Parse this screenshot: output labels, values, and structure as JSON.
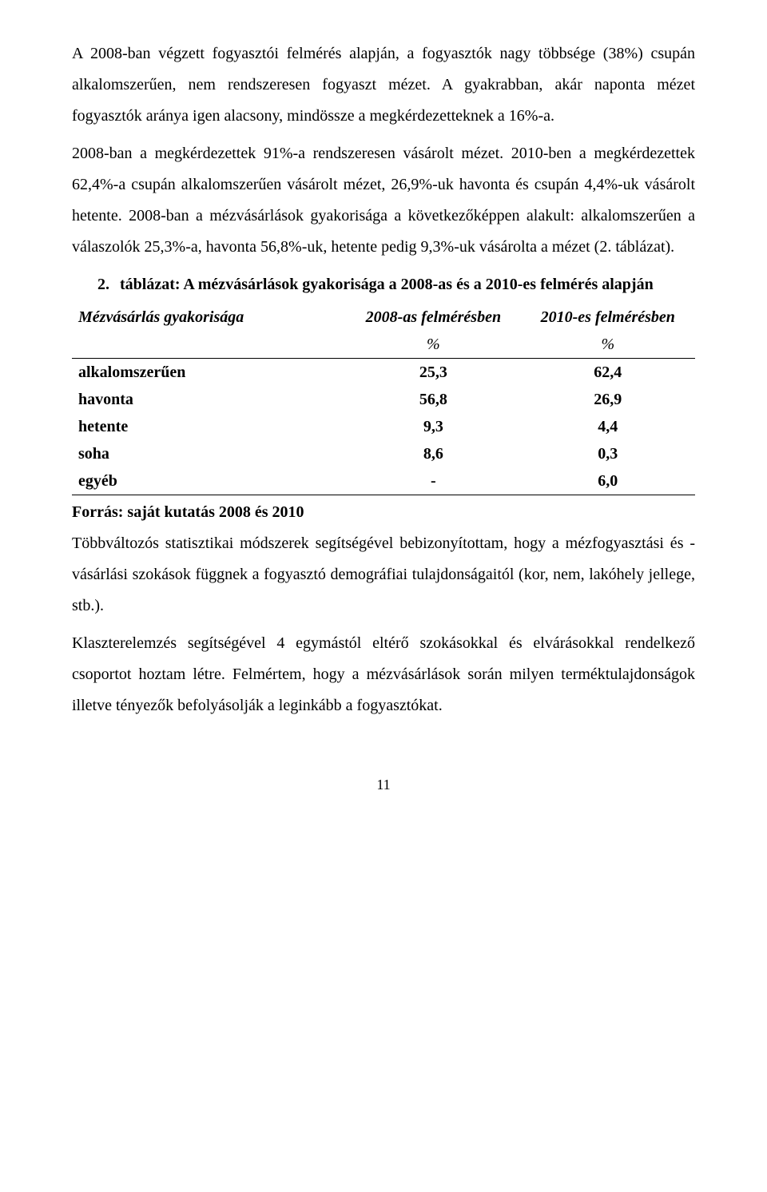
{
  "paragraphs": {
    "p1": "A 2008-ban végzett fogyasztói felmérés alapján, a fogyasztók nagy többsége (38%) csupán alkalomszerűen, nem rendszeresen fogyaszt mézet. A gyakrabban, akár naponta mézet fogyasztók aránya igen alacsony, mindössze a megkérdezetteknek a 16%-a.",
    "p2": "2008-ban a megkérdezettek 91%-a rendszeresen vásárolt mézet. 2010-ben a megkérdezettek 62,4%-a csupán alkalomszerűen vásárolt mézet, 26,9%-uk havonta és csupán 4,4%-uk vásárolt hetente. 2008-ban a mézvásárlások gyakorisága a következőképpen alakult: alkalomszerűen a válaszolók 25,3%-a, havonta 56,8%-uk, hetente pedig 9,3%-uk vásárolta a mézet (2. táblázat).",
    "p3": "Többváltozós statisztikai módszerek segítségével bebizonyítottam, hogy a mézfogyasztási és -vásárlási szokások függnek a fogyasztó demográfiai tulajdonságaitól (kor, nem, lakóhely jellege, stb.).",
    "p4": "Klaszterelemzés segítségével 4 egymástól eltérő szokásokkal és elvárásokkal rendelkező csoportot hoztam létre. Felmértem, hogy a mézvásárlások során milyen terméktulajdonságok illetve tényezők befolyásolják a leginkább a fogyasztókat."
  },
  "list": {
    "num": "2.",
    "title": "táblázat: A mézvásárlások gyakorisága a 2008-as és a 2010-es felmérés alapján"
  },
  "table": {
    "columns": [
      "Mézvásárlás gyakorisága",
      "2008-as felmérésben",
      "2010-es felmérésben"
    ],
    "unit_row": [
      "",
      "%",
      "%"
    ],
    "rows": [
      [
        "alkalomszerűen",
        "25,3",
        "62,4"
      ],
      [
        "havonta",
        "56,8",
        "26,9"
      ],
      [
        "hetente",
        "9,3",
        "4,4"
      ],
      [
        "soha",
        "8,6",
        "0,3"
      ],
      [
        "egyéb",
        "-",
        "6,0"
      ]
    ],
    "col_widths": [
      "44%",
      "28%",
      "28%"
    ],
    "border_color": "#000000",
    "font_weight": "bold"
  },
  "source": "Forrás: saját kutatás 2008 és 2010",
  "page_number": "11",
  "colors": {
    "text": "#000000",
    "background": "#ffffff"
  },
  "typography": {
    "body_fontsize_pt": 15,
    "font_family": "Times New Roman",
    "line_height": 1.95
  }
}
